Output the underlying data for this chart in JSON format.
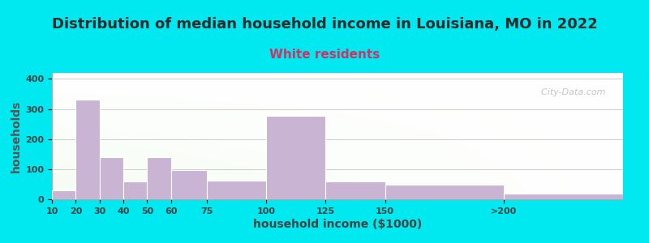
{
  "title": "Distribution of median household income in Louisiana, MO in 2022",
  "subtitle": "White residents",
  "xlabel": "household income ($1000)",
  "ylabel": "households",
  "bar_labels": [
    "10",
    "20",
    "30",
    "40",
    "50",
    "60",
    "75",
    "100",
    "125",
    "150",
    ">200"
  ],
  "bar_values": [
    30,
    330,
    140,
    60,
    140,
    97,
    63,
    278,
    60,
    48,
    20
  ],
  "bar_color": "#c9b4d4",
  "bar_edgecolor": "#ffffff",
  "ylim": [
    0,
    420
  ],
  "yticks": [
    0,
    100,
    200,
    300,
    400
  ],
  "title_fontsize": 13,
  "subtitle_fontsize": 11,
  "subtitle_color": "#cc3366",
  "title_color": "#2a2a2a",
  "xlabel_color": "#444444",
  "ylabel_color": "#555555",
  "tick_label_color": "#444444",
  "bg_color_outer": "#00e8f0",
  "watermark_text": "  City-Data.com",
  "grid_color": "#cccccc",
  "bar_widths": [
    10,
    10,
    10,
    10,
    10,
    10,
    15,
    25,
    25,
    25,
    50
  ]
}
